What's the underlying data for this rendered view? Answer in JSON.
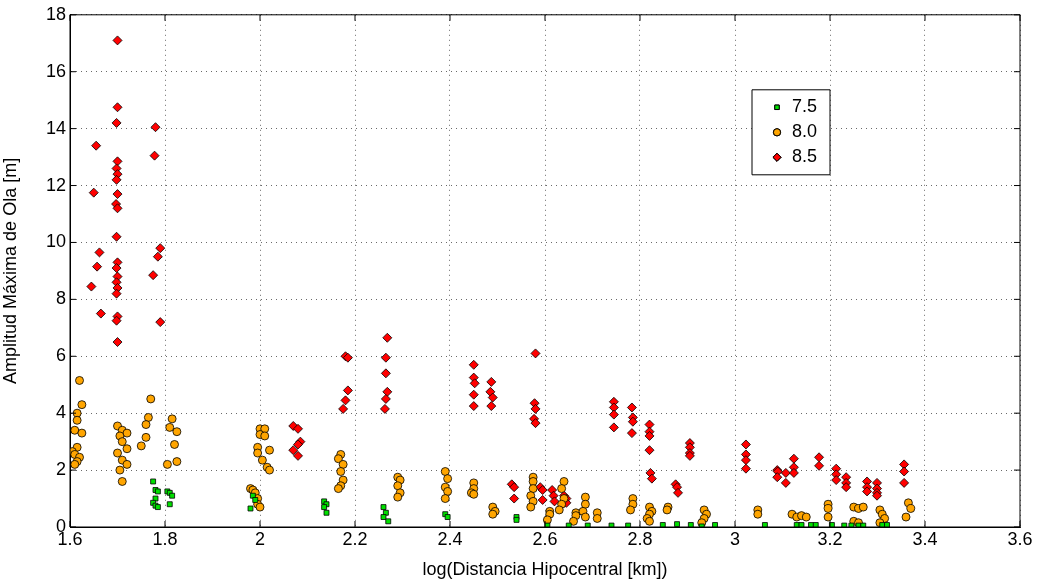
{
  "chart_data": {
    "type": "scatter",
    "xlabel": "log(Distancia Hipocentral [km])",
    "ylabel": "Amplitud Máxima de Ola [m]",
    "xlim": [
      1.6,
      3.6
    ],
    "xticks": [
      1.6,
      1.8,
      2,
      2.2,
      2.4,
      2.6,
      2.8,
      3,
      3.2,
      3.4,
      3.6
    ],
    "ylim": [
      0,
      18
    ],
    "yticks": [
      0,
      2,
      4,
      6,
      8,
      10,
      12,
      14,
      16,
      18
    ],
    "grid": true,
    "legend": "top right",
    "series": [
      {
        "name": "7.5",
        "color": "#00e000",
        "marker": "square",
        "x": [
          1.775,
          1.78,
          1.785,
          1.78,
          1.775,
          1.78,
          1.785,
          1.805,
          1.81,
          1.815,
          1.81,
          1.985,
          1.99,
          1.98,
          2.135,
          2.14,
          2.135,
          2.14,
          2.26,
          2.265,
          2.26,
          2.27,
          2.39,
          2.395,
          2.54,
          2.54,
          2.605,
          2.65,
          2.69,
          2.74,
          2.775,
          2.848,
          2.878,
          2.907,
          2.93,
          2.958,
          3.063,
          3.13,
          3.14,
          3.16,
          3.17,
          3.204,
          3.23,
          3.245,
          3.26,
          3.27,
          3.31,
          3.32
        ],
        "values": [
          1.6,
          1.3,
          1.25,
          1.0,
          0.85,
          0.75,
          0.7,
          1.25,
          1.2,
          1.1,
          0.8,
          1.1,
          0.95,
          0.65,
          0.9,
          0.8,
          0.7,
          0.5,
          0.7,
          0.5,
          0.35,
          0.2,
          0.45,
          0.35,
          0.35,
          0.25,
          0.05,
          0.05,
          0.05,
          0.05,
          0.05,
          0.07,
          0.1,
          0.07,
          0.02,
          0.07,
          0.07,
          0.07,
          0.07,
          0.07,
          0.07,
          0.07,
          0.05,
          0.05,
          0.05,
          0.05,
          0.07,
          0.07
        ]
      },
      {
        "name": "8.0",
        "color": "#ffa500",
        "marker": "circle",
        "x": [
          1.62,
          1.625,
          1.615,
          1.615,
          1.61,
          1.625,
          1.615,
          1.605,
          1.61,
          1.62,
          1.615,
          1.61,
          1.7,
          1.71,
          1.72,
          1.705,
          1.71,
          1.72,
          1.7,
          1.71,
          1.72,
          1.705,
          1.71,
          1.77,
          1.765,
          1.76,
          1.76,
          1.75,
          1.815,
          1.81,
          1.825,
          1.82,
          1.825,
          1.805,
          1.98,
          1.985,
          1.99,
          1.995,
          1.995,
          2.0,
          2.0,
          2.01,
          2.0,
          2.01,
          1.995,
          2.02,
          1.995,
          2.005,
          2.015,
          2.02,
          2.17,
          2.165,
          2.175,
          2.17,
          2.175,
          2.17,
          2.165,
          2.29,
          2.295,
          2.29,
          2.295,
          2.29,
          2.39,
          2.395,
          2.39,
          2.395,
          2.39,
          2.45,
          2.45,
          2.445,
          2.45,
          2.49,
          2.495,
          2.49,
          2.575,
          2.575,
          2.575,
          2.57,
          2.575,
          2.57,
          2.61,
          2.61,
          2.605,
          2.64,
          2.635,
          2.64,
          2.635,
          2.63,
          2.665,
          2.665,
          2.66,
          2.685,
          2.685,
          2.68,
          2.685,
          2.71,
          2.71,
          2.785,
          2.785,
          2.78,
          2.82,
          2.825,
          2.82,
          2.815,
          2.82,
          2.859,
          2.857,
          2.935,
          2.94,
          2.935,
          2.93,
          3.048,
          3.048,
          3.12,
          3.13,
          3.14,
          3.15,
          3.196,
          3.196,
          3.196,
          3.25,
          3.26,
          3.27,
          3.25,
          3.26,
          3.305,
          3.31,
          3.315,
          3.305,
          3.365,
          3.37,
          3.36
        ],
        "values": [
          5.15,
          4.3,
          4.0,
          3.75,
          3.4,
          3.3,
          2.8,
          2.65,
          2.55,
          2.45,
          2.3,
          2.2,
          3.55,
          3.4,
          3.3,
          3.2,
          3.0,
          2.75,
          2.6,
          2.35,
          2.2,
          2.0,
          1.6,
          4.5,
          3.85,
          3.6,
          3.15,
          2.85,
          3.8,
          3.5,
          3.35,
          2.9,
          2.3,
          2.2,
          1.35,
          1.3,
          1.2,
          1.0,
          0.8,
          0.7,
          3.45,
          3.45,
          3.25,
          3.2,
          2.8,
          2.7,
          2.6,
          2.35,
          2.1,
          2.0,
          2.55,
          2.4,
          2.2,
          1.95,
          1.65,
          1.45,
          1.35,
          1.75,
          1.65,
          1.45,
          1.2,
          1.05,
          1.95,
          1.7,
          1.4,
          1.25,
          1.0,
          1.55,
          1.35,
          1.2,
          1.15,
          0.7,
          0.55,
          0.45,
          1.75,
          1.6,
          1.35,
          1.1,
          0.9,
          0.7,
          0.55,
          0.45,
          0.25,
          1.6,
          1.35,
          1.0,
          0.8,
          0.6,
          0.5,
          0.4,
          0.2,
          1.05,
          0.8,
          0.55,
          0.35,
          0.5,
          0.3,
          1.0,
          0.8,
          0.6,
          0.7,
          0.55,
          0.45,
          0.3,
          0.2,
          0.7,
          0.6,
          0.6,
          0.45,
          0.3,
          0.15,
          0.6,
          0.45,
          0.45,
          0.35,
          0.4,
          0.35,
          0.8,
          0.65,
          0.35,
          0.7,
          0.65,
          0.7,
          0.2,
          0.15,
          0.6,
          0.45,
          0.3,
          0.15,
          0.85,
          0.65,
          0.35
        ]
      },
      {
        "name": "8.5",
        "color": "#ff0000",
        "marker": "diamond",
        "x": [
          1.645,
          1.65,
          1.655,
          1.657,
          1.662,
          1.665,
          1.7,
          1.7,
          1.698,
          1.7,
          1.698,
          1.7,
          1.698,
          1.7,
          1.697,
          1.7,
          1.698,
          1.7,
          1.698,
          1.7,
          1.698,
          1.7,
          1.698,
          1.7,
          1.698,
          1.7,
          1.78,
          1.778,
          1.775,
          1.785,
          1.79,
          1.79,
          2.07,
          2.08,
          2.085,
          2.08,
          2.07,
          2.08,
          2.18,
          2.185,
          2.185,
          2.18,
          2.175,
          2.268,
          2.265,
          2.265,
          2.268,
          2.265,
          2.263,
          2.45,
          2.45,
          2.452,
          2.45,
          2.45,
          2.487,
          2.485,
          2.49,
          2.487,
          2.53,
          2.535,
          2.535,
          2.58,
          2.578,
          2.58,
          2.577,
          2.58,
          2.59,
          2.595,
          2.595,
          2.615,
          2.618,
          2.62,
          2.64,
          2.645,
          2.645,
          2.745,
          2.745,
          2.745,
          2.745,
          2.783,
          2.785,
          2.785,
          2.783,
          2.82,
          2.82,
          2.82,
          2.82,
          2.822,
          2.825,
          2.875,
          2.878,
          2.88,
          2.905,
          2.905,
          2.905,
          2.905,
          3.023,
          3.023,
          3.023,
          3.023,
          3.089,
          3.09,
          3.089,
          3.107,
          3.107,
          3.124,
          3.124,
          3.124,
          3.177,
          3.177,
          3.213,
          3.213,
          3.213,
          3.234,
          3.234,
          3.234,
          3.278,
          3.278,
          3.278,
          3.299,
          3.299,
          3.299,
          3.299,
          3.356,
          3.356,
          3.356
        ],
        "values": [
          8.45,
          11.75,
          13.4,
          9.15,
          9.65,
          7.5,
          17.1,
          14.75,
          14.2,
          12.85,
          12.6,
          12.4,
          12.2,
          11.7,
          11.35,
          11.2,
          10.2,
          9.3,
          9.1,
          8.8,
          8.6,
          8.4,
          8.2,
          7.4,
          7.25,
          6.5,
          14.05,
          13.05,
          8.85,
          9.5,
          9.8,
          7.2,
          3.55,
          3.45,
          3.0,
          2.9,
          2.7,
          2.5,
          6.0,
          5.95,
          4.8,
          4.45,
          4.15,
          6.65,
          5.95,
          5.4,
          4.75,
          4.5,
          4.15,
          5.7,
          5.25,
          5.05,
          4.65,
          4.25,
          5.1,
          4.75,
          4.55,
          4.25,
          1.5,
          1.4,
          1.0,
          6.1,
          4.35,
          4.15,
          3.8,
          3.65,
          1.4,
          1.3,
          0.95,
          1.3,
          1.1,
          0.9,
          1.1,
          1.0,
          0.85,
          4.4,
          4.2,
          3.95,
          3.5,
          4.2,
          3.85,
          3.7,
          3.3,
          3.6,
          3.35,
          3.2,
          2.7,
          1.9,
          1.7,
          1.5,
          1.4,
          1.2,
          2.95,
          2.8,
          2.6,
          2.5,
          2.9,
          2.55,
          2.35,
          2.05,
          2.0,
          1.95,
          1.75,
          1.9,
          1.55,
          2.4,
          2.1,
          1.9,
          2.45,
          2.15,
          2.05,
          1.85,
          1.65,
          1.75,
          1.55,
          1.4,
          1.6,
          1.4,
          1.25,
          1.55,
          1.35,
          1.2,
          1.1,
          2.2,
          1.95,
          1.55
        ]
      }
    ]
  }
}
